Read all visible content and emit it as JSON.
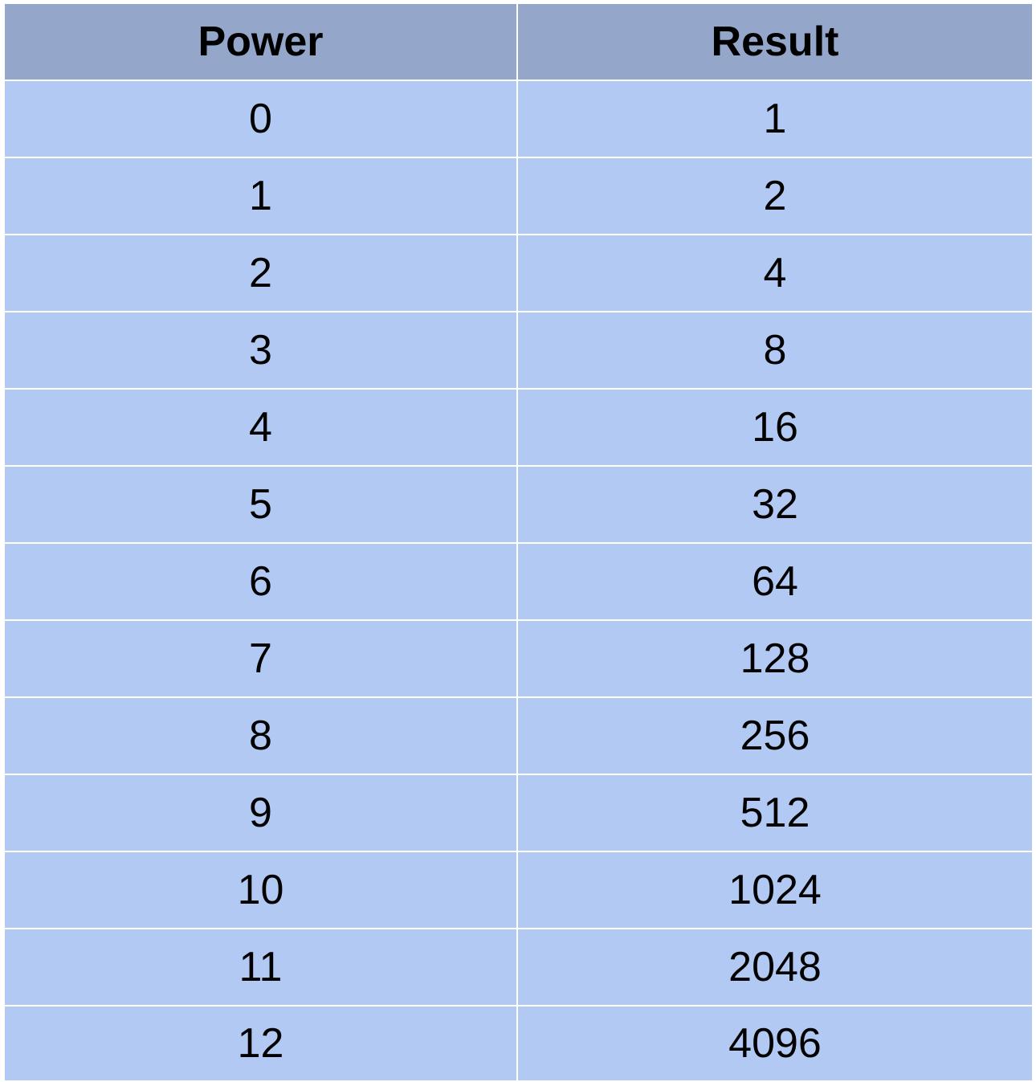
{
  "table": {
    "headers": [
      "Power",
      "Result"
    ],
    "rows": [
      [
        "0",
        "1"
      ],
      [
        "1",
        "2"
      ],
      [
        "2",
        "4"
      ],
      [
        "3",
        "8"
      ],
      [
        "4",
        "16"
      ],
      [
        "5",
        "32"
      ],
      [
        "6",
        "64"
      ],
      [
        "7",
        "128"
      ],
      [
        "8",
        "256"
      ],
      [
        "9",
        "512"
      ],
      [
        "10",
        "1024"
      ],
      [
        "11",
        "2048"
      ],
      [
        "12",
        "4096"
      ]
    ]
  },
  "colors": {
    "header_background": "#94a7cb",
    "cell_background": "#b1c9f3",
    "grid_lines": "#ffffff",
    "text": "#000000"
  }
}
